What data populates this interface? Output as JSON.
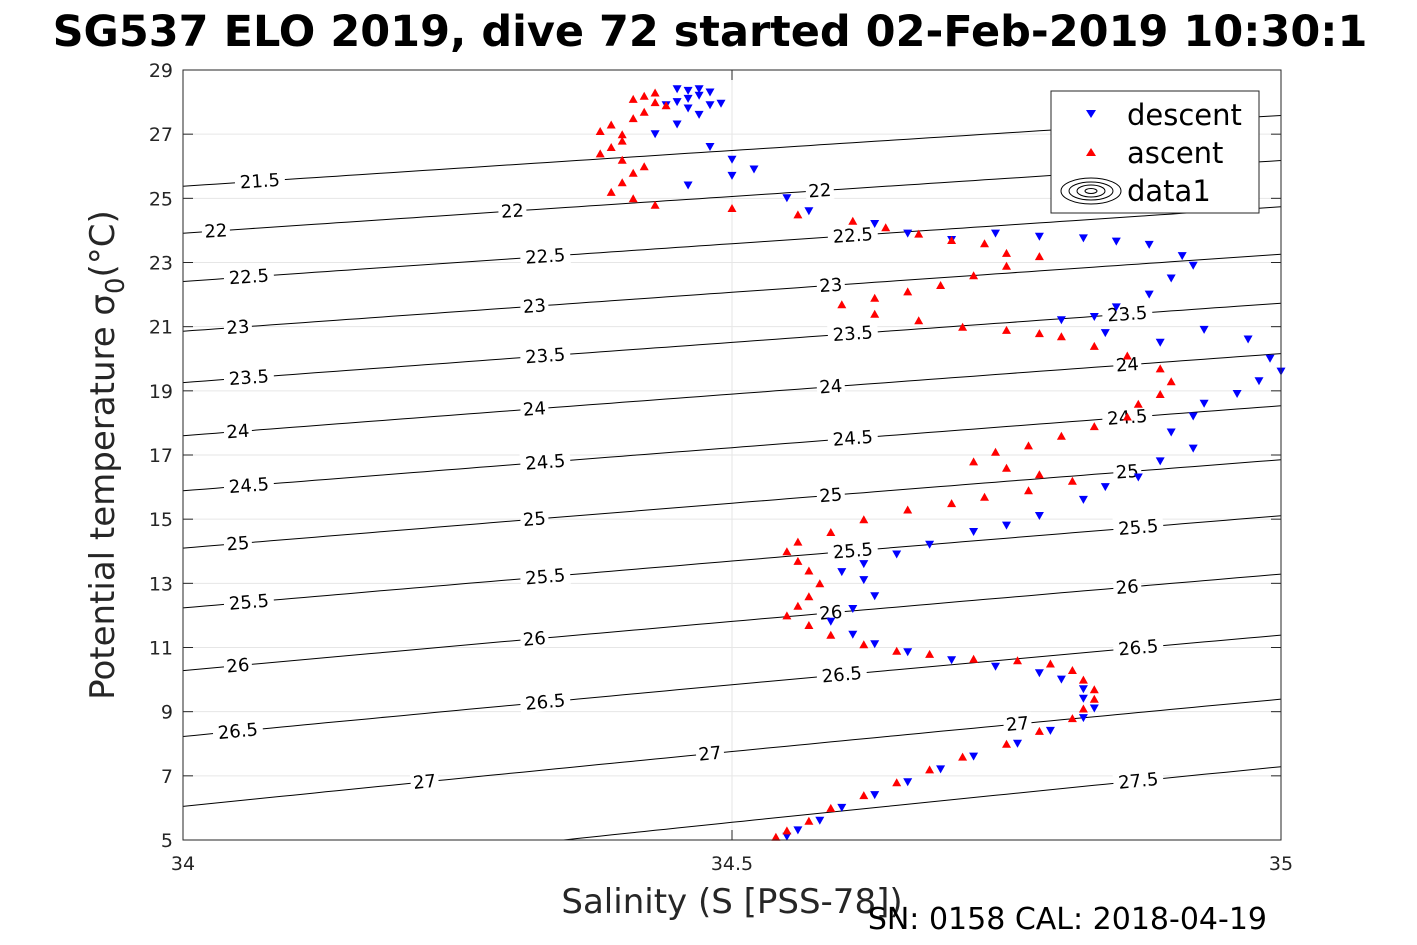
{
  "chart_data": {
    "type": "scatter",
    "title": "SG537 ELO 2019, dive 72 started 02-Feb-2019 10:30:1",
    "xlabel": "Salinity (S [PSS-78])",
    "ylabel": "Potential temperature",
    "ylabel_symbol": "σ",
    "ylabel_sub": "0",
    "ylabel_unit": "(°C)",
    "xlim": [
      34,
      35
    ],
    "ylim": [
      5,
      29
    ],
    "xticks": [
      34,
      34.5,
      35
    ],
    "xtick_labels": [
      "34",
      "34.5",
      "35"
    ],
    "yticks": [
      5,
      7,
      9,
      11,
      13,
      15,
      17,
      19,
      21,
      23,
      25,
      27,
      29
    ],
    "ytick_labels": [
      "5",
      "7",
      "9",
      "11",
      "13",
      "15",
      "17",
      "19",
      "21",
      "23",
      "25",
      "27",
      "29"
    ],
    "grid": true,
    "footer": "SN: 0158  CAL: 2018-04-19",
    "legend": {
      "placement": "top-right",
      "entries": [
        "descent",
        "ascent",
        "data1"
      ]
    },
    "colors": {
      "descent": "#0000ff",
      "ascent": "#ff0000",
      "contour": "#000000",
      "grid": "#e6e6e6",
      "axis": "#262626"
    },
    "contours": {
      "levels": [
        21.5,
        22,
        22.5,
        23,
        23.5,
        24,
        24.5,
        25,
        25.5,
        26,
        26.5,
        27,
        27.5
      ],
      "level_labels": [
        "21.5",
        "22",
        "22.5",
        "23",
        "23.5",
        "24",
        "24.5",
        "25",
        "25.5",
        "26",
        "26.5",
        "27",
        "27.5"
      ],
      "label_positions": [
        {
          "level": "21.5",
          "s": 34.07,
          "t": 28.6
        },
        {
          "level": "22",
          "s": 34.03,
          "t": 27.0
        },
        {
          "level": "22",
          "s": 34.3,
          "t": 27.6
        },
        {
          "level": "22",
          "s": 34.58,
          "t": 28.3
        },
        {
          "level": "22",
          "s": 34.84,
          "t": 28.9
        },
        {
          "level": "22.5",
          "s": 34.06,
          "t": 25.4
        },
        {
          "level": "22.5",
          "s": 34.33,
          "t": 26.1
        },
        {
          "level": "22.5",
          "s": 34.61,
          "t": 26.7
        },
        {
          "level": "23",
          "s": 34.05,
          "t": 23.7
        },
        {
          "level": "23",
          "s": 34.32,
          "t": 24.5
        },
        {
          "level": "23",
          "s": 34.59,
          "t": 25.1
        },
        {
          "level": "23.5",
          "s": 34.06,
          "t": 22.1
        },
        {
          "level": "23.5",
          "s": 34.33,
          "t": 22.8
        },
        {
          "level": "23.5",
          "s": 34.61,
          "t": 23.4
        },
        {
          "level": "23.5",
          "s": 34.86,
          "t": 24.1
        },
        {
          "level": "24",
          "s": 34.05,
          "t": 20.3
        },
        {
          "level": "24",
          "s": 34.32,
          "t": 21.1
        },
        {
          "level": "24",
          "s": 34.59,
          "t": 21.8
        },
        {
          "level": "24",
          "s": 34.86,
          "t": 22.4
        },
        {
          "level": "24.5",
          "s": 34.06,
          "t": 18.6
        },
        {
          "level": "24.5",
          "s": 34.33,
          "t": 19.4
        },
        {
          "level": "24.5",
          "s": 34.61,
          "t": 20.1
        },
        {
          "level": "24.5",
          "s": 34.86,
          "t": 20.7
        },
        {
          "level": "25",
          "s": 34.05,
          "t": 16.8
        },
        {
          "level": "25",
          "s": 34.32,
          "t": 17.6
        },
        {
          "level": "25",
          "s": 34.59,
          "t": 18.4
        },
        {
          "level": "25",
          "s": 34.86,
          "t": 19.0
        },
        {
          "level": "25.5",
          "s": 34.06,
          "t": 14.9
        },
        {
          "level": "25.5",
          "s": 34.33,
          "t": 15.8
        },
        {
          "level": "25.5",
          "s": 34.61,
          "t": 16.6
        },
        {
          "level": "25.5",
          "s": 34.87,
          "t": 17.2
        },
        {
          "level": "26",
          "s": 34.05,
          "t": 13.0
        },
        {
          "level": "26",
          "s": 34.32,
          "t": 13.9
        },
        {
          "level": "26",
          "s": 34.59,
          "t": 14.6
        },
        {
          "level": "26",
          "s": 34.86,
          "t": 15.3
        },
        {
          "level": "26.5",
          "s": 34.05,
          "t": 11.0
        },
        {
          "level": "26.5",
          "s": 34.33,
          "t": 12.0
        },
        {
          "level": "26.5",
          "s": 34.6,
          "t": 12.8
        },
        {
          "level": "26.5",
          "s": 34.87,
          "t": 13.5
        },
        {
          "level": "27",
          "s": 34.22,
          "t": 10.2
        },
        {
          "level": "27",
          "s": 34.48,
          "t": 11.1
        },
        {
          "level": "27",
          "s": 34.76,
          "t": 11.9
        },
        {
          "level": "27.5",
          "s": 34.87,
          "t": 9.8
        }
      ]
    },
    "series": [
      {
        "name": "descent",
        "marker": "triangle-down",
        "points": [
          [
            34.45,
            28.4
          ],
          [
            34.46,
            28.35
          ],
          [
            34.47,
            28.4
          ],
          [
            34.48,
            28.3
          ],
          [
            34.47,
            28.2
          ],
          [
            34.46,
            28.1
          ],
          [
            34.45,
            28.0
          ],
          [
            34.44,
            27.9
          ],
          [
            34.46,
            27.8
          ],
          [
            34.48,
            27.9
          ],
          [
            34.49,
            27.95
          ],
          [
            34.47,
            27.6
          ],
          [
            34.45,
            27.3
          ],
          [
            34.43,
            27.0
          ],
          [
            34.48,
            26.6
          ],
          [
            34.5,
            26.2
          ],
          [
            34.52,
            25.9
          ],
          [
            34.46,
            25.4
          ],
          [
            34.5,
            25.7
          ],
          [
            34.55,
            25.0
          ],
          [
            34.57,
            24.6
          ],
          [
            34.63,
            24.2
          ],
          [
            34.66,
            23.9
          ],
          [
            34.7,
            23.7
          ],
          [
            34.74,
            23.9
          ],
          [
            34.78,
            23.8
          ],
          [
            34.82,
            23.75
          ],
          [
            34.85,
            23.65
          ],
          [
            34.88,
            23.55
          ],
          [
            34.91,
            23.2
          ],
          [
            34.92,
            22.9
          ],
          [
            34.9,
            22.5
          ],
          [
            34.88,
            22.0
          ],
          [
            34.85,
            21.6
          ],
          [
            34.83,
            21.3
          ],
          [
            34.8,
            21.2
          ],
          [
            34.84,
            20.8
          ],
          [
            34.89,
            20.5
          ],
          [
            34.93,
            20.9
          ],
          [
            34.97,
            20.6
          ],
          [
            34.99,
            20.0
          ],
          [
            35.0,
            19.6
          ],
          [
            34.98,
            19.3
          ],
          [
            34.96,
            18.9
          ],
          [
            34.93,
            18.6
          ],
          [
            34.92,
            18.2
          ],
          [
            34.9,
            17.7
          ],
          [
            34.92,
            17.2
          ],
          [
            34.89,
            16.8
          ],
          [
            34.87,
            16.3
          ],
          [
            34.84,
            16.0
          ],
          [
            34.82,
            15.6
          ],
          [
            34.78,
            15.1
          ],
          [
            34.75,
            14.8
          ],
          [
            34.72,
            14.6
          ],
          [
            34.68,
            14.2
          ],
          [
            34.65,
            13.9
          ],
          [
            34.62,
            13.6
          ],
          [
            34.6,
            13.35
          ],
          [
            34.62,
            13.1
          ],
          [
            34.63,
            12.6
          ],
          [
            34.61,
            12.2
          ],
          [
            34.59,
            11.8
          ],
          [
            34.61,
            11.4
          ],
          [
            34.63,
            11.1
          ],
          [
            34.66,
            10.85
          ],
          [
            34.7,
            10.6
          ],
          [
            34.74,
            10.4
          ],
          [
            34.78,
            10.2
          ],
          [
            34.8,
            10.0
          ],
          [
            34.82,
            9.7
          ],
          [
            34.82,
            9.4
          ],
          [
            34.83,
            9.1
          ],
          [
            34.82,
            8.8
          ],
          [
            34.79,
            8.4
          ],
          [
            34.76,
            8.0
          ],
          [
            34.72,
            7.6
          ],
          [
            34.69,
            7.2
          ],
          [
            34.66,
            6.8
          ],
          [
            34.63,
            6.4
          ],
          [
            34.6,
            6.0
          ],
          [
            34.58,
            5.6
          ],
          [
            34.56,
            5.3
          ],
          [
            34.55,
            5.1
          ]
        ]
      },
      {
        "name": "ascent",
        "marker": "triangle-up",
        "points": [
          [
            34.43,
            28.3
          ],
          [
            34.42,
            28.2
          ],
          [
            34.41,
            28.1
          ],
          [
            34.43,
            28.0
          ],
          [
            34.44,
            27.9
          ],
          [
            34.42,
            27.7
          ],
          [
            34.41,
            27.5
          ],
          [
            34.39,
            27.3
          ],
          [
            34.38,
            27.1
          ],
          [
            34.4,
            27.0
          ],
          [
            34.4,
            26.8
          ],
          [
            34.39,
            26.6
          ],
          [
            34.38,
            26.4
          ],
          [
            34.4,
            26.2
          ],
          [
            34.42,
            26.0
          ],
          [
            34.41,
            25.8
          ],
          [
            34.4,
            25.5
          ],
          [
            34.39,
            25.2
          ],
          [
            34.41,
            25.0
          ],
          [
            34.43,
            24.8
          ],
          [
            34.5,
            24.7
          ],
          [
            34.56,
            24.5
          ],
          [
            34.61,
            24.3
          ],
          [
            34.64,
            24.1
          ],
          [
            34.67,
            23.9
          ],
          [
            34.7,
            23.7
          ],
          [
            34.73,
            23.6
          ],
          [
            34.75,
            23.3
          ],
          [
            34.78,
            23.2
          ],
          [
            34.75,
            22.9
          ],
          [
            34.72,
            22.6
          ],
          [
            34.69,
            22.3
          ],
          [
            34.66,
            22.1
          ],
          [
            34.63,
            21.9
          ],
          [
            34.6,
            21.7
          ],
          [
            34.63,
            21.4
          ],
          [
            34.67,
            21.2
          ],
          [
            34.71,
            21.0
          ],
          [
            34.75,
            20.9
          ],
          [
            34.78,
            20.8
          ],
          [
            34.8,
            20.7
          ],
          [
            34.83,
            20.4
          ],
          [
            34.86,
            20.1
          ],
          [
            34.89,
            19.7
          ],
          [
            34.9,
            19.3
          ],
          [
            34.89,
            18.9
          ],
          [
            34.87,
            18.6
          ],
          [
            34.86,
            18.2
          ],
          [
            34.83,
            17.9
          ],
          [
            34.8,
            17.6
          ],
          [
            34.77,
            17.3
          ],
          [
            34.74,
            17.1
          ],
          [
            34.72,
            16.8
          ],
          [
            34.75,
            16.6
          ],
          [
            34.78,
            16.4
          ],
          [
            34.81,
            16.2
          ],
          [
            34.77,
            15.9
          ],
          [
            34.73,
            15.7
          ],
          [
            34.7,
            15.5
          ],
          [
            34.66,
            15.3
          ],
          [
            34.62,
            15.0
          ],
          [
            34.59,
            14.6
          ],
          [
            34.56,
            14.3
          ],
          [
            34.55,
            14.0
          ],
          [
            34.56,
            13.7
          ],
          [
            34.57,
            13.4
          ],
          [
            34.58,
            13.0
          ],
          [
            34.57,
            12.6
          ],
          [
            34.56,
            12.3
          ],
          [
            34.55,
            12.0
          ],
          [
            34.57,
            11.7
          ],
          [
            34.59,
            11.4
          ],
          [
            34.62,
            11.1
          ],
          [
            34.65,
            10.9
          ],
          [
            34.68,
            10.8
          ],
          [
            34.72,
            10.65
          ],
          [
            34.76,
            10.6
          ],
          [
            34.79,
            10.5
          ],
          [
            34.81,
            10.3
          ],
          [
            34.82,
            10.0
          ],
          [
            34.83,
            9.7
          ],
          [
            34.83,
            9.4
          ],
          [
            34.82,
            9.1
          ],
          [
            34.81,
            8.8
          ],
          [
            34.78,
            8.4
          ],
          [
            34.75,
            8.0
          ],
          [
            34.71,
            7.6
          ],
          [
            34.68,
            7.2
          ],
          [
            34.65,
            6.8
          ],
          [
            34.62,
            6.4
          ],
          [
            34.59,
            6.0
          ],
          [
            34.57,
            5.6
          ],
          [
            34.55,
            5.3
          ],
          [
            34.54,
            5.1
          ]
        ]
      }
    ]
  }
}
